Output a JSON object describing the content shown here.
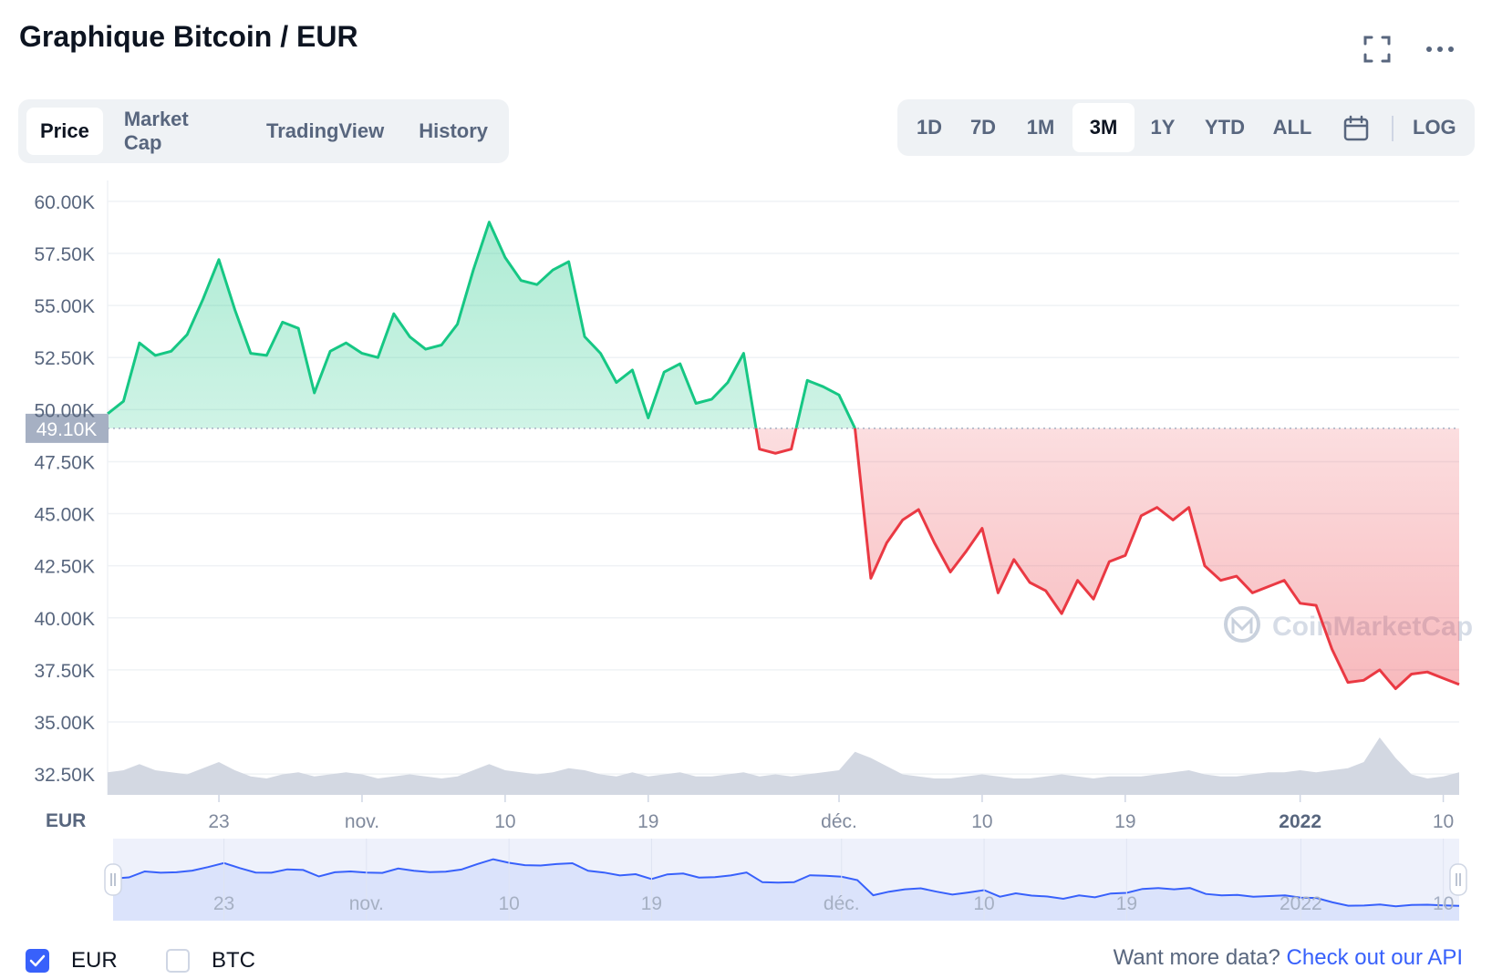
{
  "header": {
    "title": "Graphique Bitcoin / EUR",
    "fullscreen_icon": "fullscreen-icon",
    "more_icon": "more-dots-icon"
  },
  "tabs": [
    {
      "label": "Price",
      "active": true
    },
    {
      "label": "Market Cap",
      "active": false
    },
    {
      "label": "TradingView",
      "active": false
    },
    {
      "label": "History",
      "active": false
    }
  ],
  "ranges": [
    {
      "label": "1D",
      "active": false
    },
    {
      "label": "7D",
      "active": false
    },
    {
      "label": "1M",
      "active": false
    },
    {
      "label": "3M",
      "active": true
    },
    {
      "label": "1Y",
      "active": false
    },
    {
      "label": "YTD",
      "active": false
    },
    {
      "label": "ALL",
      "active": false
    }
  ],
  "calendar_icon": "calendar-icon",
  "log_label": "LOG",
  "watermark": "CoinMarketCap",
  "currency_label": "EUR",
  "legend": [
    {
      "label": "EUR",
      "checked": true
    },
    {
      "label": "BTC",
      "checked": false
    }
  ],
  "footer": {
    "text": "Want more data?",
    "link": "Check out our API"
  },
  "colors": {
    "up": "#16c784",
    "down": "#ea3943",
    "accent": "#3861fb",
    "volume": "#d3d8e2",
    "navigator": "#dbe3fb"
  },
  "chart_data": {
    "type": "line",
    "title": "Graphique Bitcoin / EUR",
    "ylabel": "EUR",
    "ylim": [
      31500,
      61000
    ],
    "y_ticks": [
      60000,
      57500,
      55000,
      52500,
      50000,
      47500,
      45000,
      42500,
      40000,
      37500,
      35000,
      32500
    ],
    "y_tick_labels": [
      "60.00K",
      "57.50K",
      "55.00K",
      "52.50K",
      "50.00K",
      "47.50K",
      "45.00K",
      "42.50K",
      "40.00K",
      "37.50K",
      "35.00K",
      "32.50K"
    ],
    "x_tick_labels": [
      "23",
      "nov.",
      "10",
      "19",
      "déc.",
      "10",
      "19",
      "2022",
      "10"
    ],
    "x_tick_positions_days": [
      7,
      16,
      25,
      34,
      46,
      55,
      64,
      75,
      84
    ],
    "days_total": 85,
    "reference_value": 49100,
    "reference_label": "49.10K",
    "grid": true,
    "series": [
      {
        "x": [
          0,
          1,
          2,
          3,
          4,
          5,
          6,
          7,
          8,
          9,
          10,
          11,
          12,
          13,
          14,
          15,
          16,
          17,
          18,
          19,
          20,
          21,
          22,
          23,
          24,
          25,
          26,
          27,
          28,
          29,
          30,
          31,
          32,
          33,
          34,
          35,
          36,
          37,
          38,
          39,
          40,
          41,
          42,
          43,
          44,
          45,
          46,
          47,
          48,
          49,
          50,
          51,
          52,
          53,
          54,
          55,
          56,
          57,
          58,
          59,
          60,
          61,
          62,
          63,
          64,
          65,
          66,
          67,
          68,
          69,
          70,
          71,
          72,
          73,
          74,
          75,
          76,
          77,
          78,
          79,
          80,
          81,
          82,
          83,
          84,
          85
        ],
        "y": [
          49800,
          50400,
          53200,
          52600,
          52800,
          53600,
          55300,
          57200,
          54800,
          52700,
          52600,
          54200,
          53900,
          50800,
          52800,
          53200,
          52700,
          52500,
          54600,
          53500,
          52900,
          53100,
          54100,
          56700,
          59000,
          57300,
          56200,
          56000,
          56700,
          57100,
          53500,
          52700,
          51300,
          51900,
          49600,
          51800,
          52200,
          50300,
          50500,
          51300,
          52700,
          48100,
          47900,
          48100,
          51400,
          51100,
          50700,
          49100,
          41900,
          43600,
          44700,
          45200,
          43600,
          42200,
          43200,
          44300,
          41200,
          42800,
          41700,
          41300,
          40200,
          41800,
          40900,
          42700,
          43000,
          44900,
          45300,
          44700,
          45300,
          42500,
          41800,
          42000,
          41200,
          41500,
          41800,
          40700,
          40600,
          38500,
          36900,
          37000,
          37500,
          36600,
          37300,
          37400,
          37100,
          36800
        ]
      }
    ],
    "volume_relative": [
      0.55,
      0.6,
      0.75,
      0.6,
      0.55,
      0.5,
      0.65,
      0.8,
      0.6,
      0.45,
      0.4,
      0.5,
      0.55,
      0.45,
      0.5,
      0.55,
      0.5,
      0.4,
      0.45,
      0.5,
      0.45,
      0.4,
      0.45,
      0.6,
      0.75,
      0.6,
      0.55,
      0.5,
      0.55,
      0.65,
      0.6,
      0.5,
      0.45,
      0.55,
      0.45,
      0.5,
      0.55,
      0.45,
      0.45,
      0.5,
      0.55,
      0.45,
      0.5,
      0.45,
      0.5,
      0.55,
      0.6,
      1.05,
      0.9,
      0.7,
      0.5,
      0.45,
      0.4,
      0.4,
      0.45,
      0.5,
      0.45,
      0.4,
      0.4,
      0.45,
      0.5,
      0.45,
      0.4,
      0.45,
      0.45,
      0.45,
      0.5,
      0.55,
      0.6,
      0.5,
      0.45,
      0.45,
      0.5,
      0.55,
      0.55,
      0.6,
      0.55,
      0.6,
      0.65,
      0.8,
      1.4,
      0.9,
      0.5,
      0.4,
      0.45,
      0.55
    ]
  }
}
